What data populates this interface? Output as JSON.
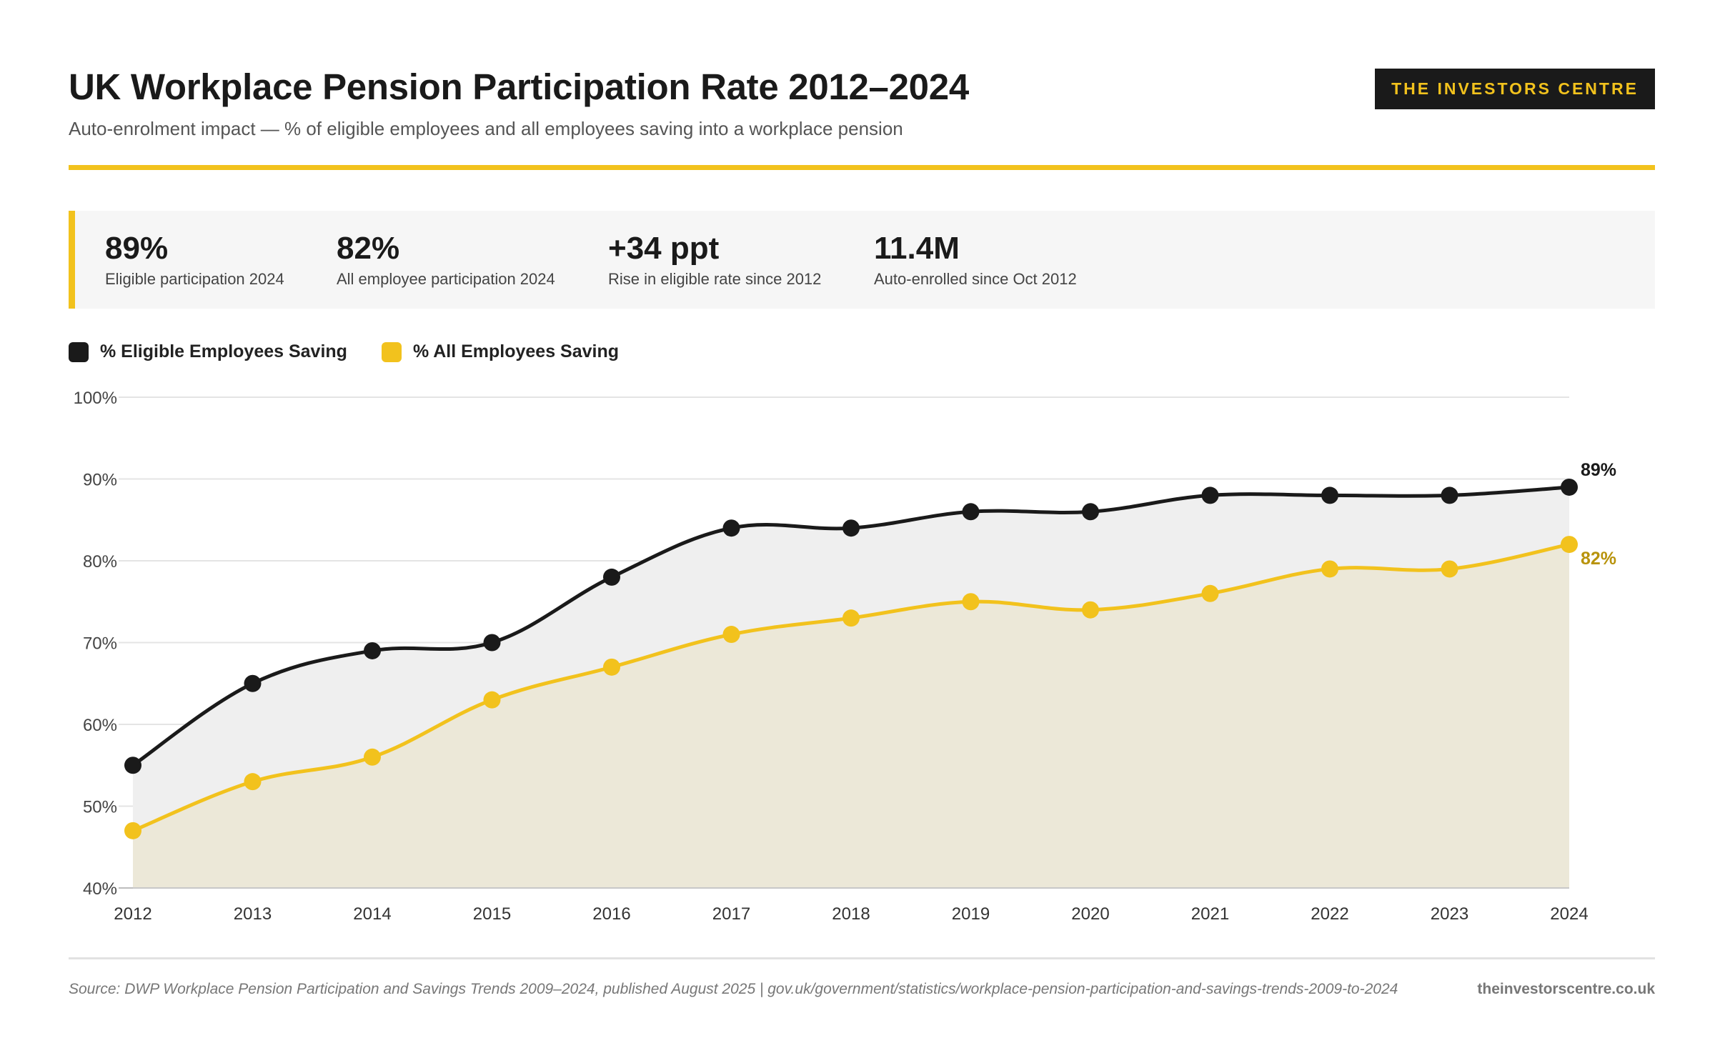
{
  "header": {
    "title": "UK Workplace Pension Participation Rate 2012–2024",
    "subtitle": "Auto-enrolment impact — % of eligible employees and all employees saving into a workplace pension",
    "brand": "THE INVESTORS CENTRE"
  },
  "colors": {
    "accent": "#f2c21d",
    "dark": "#1a1a1a",
    "eligible_fill": "#efefef",
    "all_fill": "#ece8d8",
    "all_label": "#b8930c"
  },
  "stats": [
    {
      "value": "89%",
      "label": "Eligible participation 2024"
    },
    {
      "value": "82%",
      "label": "All employee participation 2024"
    },
    {
      "value": "+34 ppt",
      "label": "Rise in eligible rate since 2012"
    },
    {
      "value": "11.4M",
      "label": "Auto-enrolled since Oct 2012"
    }
  ],
  "chart_data": {
    "type": "area",
    "categories": [
      "2012",
      "2013",
      "2014",
      "2015",
      "2016",
      "2017",
      "2018",
      "2019",
      "2020",
      "2021",
      "2022",
      "2023",
      "2024"
    ],
    "series": [
      {
        "name": "% Eligible Employees Saving",
        "color": "#1a1a1a",
        "values": [
          55,
          65,
          69,
          70,
          78,
          84,
          84,
          86,
          86,
          88,
          88,
          88,
          89
        ],
        "end_label": "89%"
      },
      {
        "name": "% All Employees Saving",
        "color": "#f2c21d",
        "values": [
          47,
          53,
          56,
          63,
          67,
          71,
          73,
          75,
          74,
          76,
          79,
          79,
          82
        ],
        "end_label": "82%"
      }
    ],
    "ylim": [
      40,
      100
    ],
    "yticks": [
      40,
      50,
      60,
      70,
      80,
      90,
      100
    ],
    "ytick_labels": [
      "40%",
      "50%",
      "60%",
      "70%",
      "80%",
      "90%",
      "100%"
    ],
    "grid": true,
    "legend": "top-left"
  },
  "footer": {
    "source": "Source: DWP Workplace Pension Participation and Savings Trends 2009–2024, published August 2025 | gov.uk/government/statistics/workplace-pension-participation-and-savings-trends-2009-to-2024",
    "site": "theinvestorscentre.co.uk"
  }
}
